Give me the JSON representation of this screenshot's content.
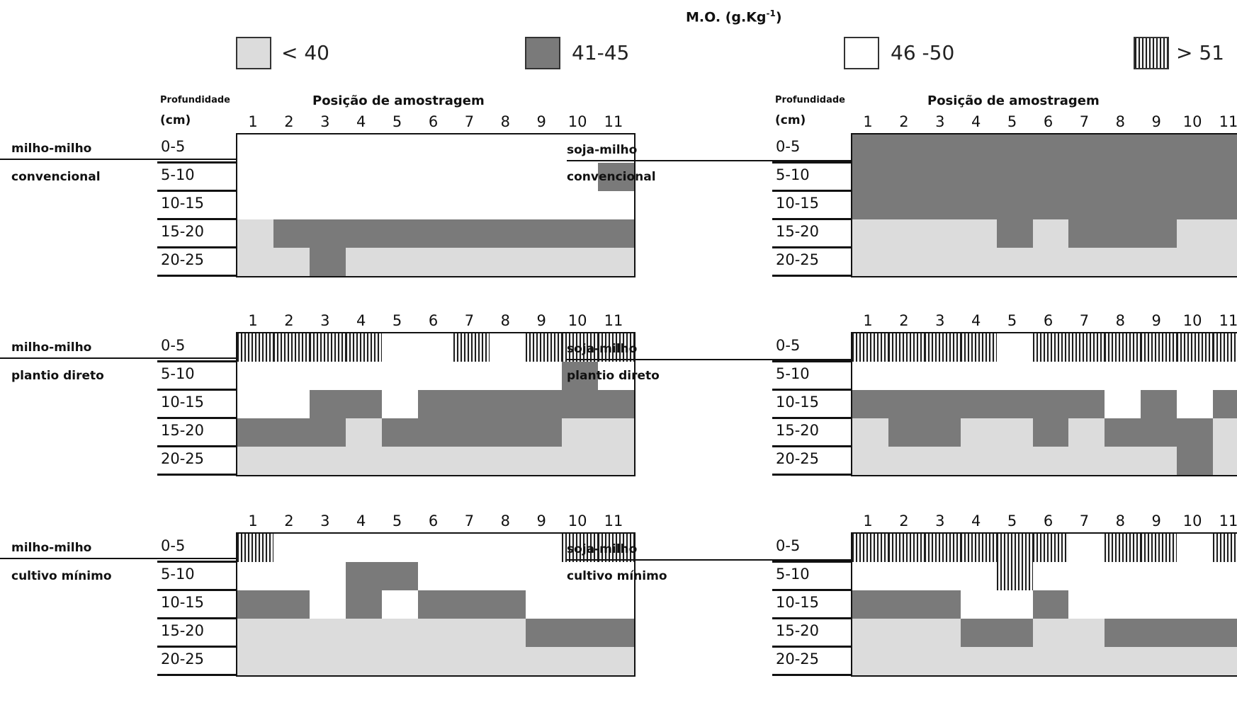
{
  "legend": {
    "unit_main": "M.O. (g.Kg",
    "unit_sup": "-1",
    "unit_close": ")",
    "classes": [
      {
        "label": "< 40",
        "color": "#dcdcdc"
      },
      {
        "label": "41-45",
        "color": "#7a7a7a"
      },
      {
        "label": "46 -50",
        "color": "#ffffff"
      },
      {
        "label": "> 51",
        "color": "hatched"
      }
    ]
  },
  "axis": {
    "depth_header_1": "Profundidade",
    "depth_header_2": "(cm)",
    "position_title": "Posição de amostragem"
  },
  "chart_data": {
    "type": "heatmap",
    "x_categories": [
      "1",
      "2",
      "3",
      "4",
      "5",
      "6",
      "7",
      "8",
      "9",
      "10",
      "11"
    ],
    "y_categories": [
      "0-5",
      "5-10",
      "10-15",
      "15-20",
      "20-25"
    ],
    "class_codes": {
      "0": "< 40",
      "1": "41-45",
      "2": "46 -50",
      "3": "> 51"
    },
    "panels": [
      {
        "rotation": "milho-milho",
        "system": "convencional",
        "grid": [
          [
            2,
            2,
            2,
            2,
            2,
            2,
            2,
            2,
            2,
            2,
            2
          ],
          [
            2,
            2,
            2,
            2,
            2,
            2,
            2,
            2,
            2,
            2,
            1
          ],
          [
            2,
            2,
            2,
            2,
            2,
            2,
            2,
            2,
            2,
            2,
            2
          ],
          [
            0,
            1,
            1,
            1,
            1,
            1,
            1,
            1,
            1,
            1,
            1
          ],
          [
            0,
            0,
            1,
            0,
            0,
            0,
            0,
            0,
            0,
            0,
            0
          ]
        ]
      },
      {
        "rotation": "soja-milho",
        "system": "convencional",
        "grid": [
          [
            1,
            1,
            1,
            1,
            1,
            1,
            1,
            1,
            1,
            1,
            1
          ],
          [
            1,
            1,
            1,
            1,
            1,
            1,
            1,
            1,
            1,
            1,
            1
          ],
          [
            1,
            1,
            1,
            1,
            1,
            1,
            1,
            1,
            1,
            1,
            1
          ],
          [
            0,
            0,
            0,
            0,
            1,
            0,
            1,
            1,
            1,
            0,
            0
          ],
          [
            0,
            0,
            0,
            0,
            0,
            0,
            0,
            0,
            0,
            0,
            0
          ]
        ]
      },
      {
        "rotation": "milho-milho",
        "system": "plantio direto",
        "grid": [
          [
            3,
            3,
            3,
            3,
            2,
            2,
            3,
            2,
            3,
            3,
            3
          ],
          [
            2,
            2,
            2,
            2,
            2,
            2,
            2,
            2,
            2,
            1,
            2
          ],
          [
            2,
            2,
            1,
            1,
            2,
            1,
            1,
            1,
            1,
            1,
            1
          ],
          [
            1,
            1,
            1,
            0,
            1,
            1,
            1,
            1,
            1,
            0,
            0
          ],
          [
            0,
            0,
            0,
            0,
            0,
            0,
            0,
            0,
            0,
            0,
            0
          ]
        ]
      },
      {
        "rotation": "soja-milho",
        "system": "plantio direto",
        "grid": [
          [
            3,
            3,
            3,
            3,
            2,
            3,
            3,
            3,
            3,
            3,
            3
          ],
          [
            2,
            2,
            2,
            2,
            2,
            2,
            2,
            2,
            2,
            2,
            2
          ],
          [
            1,
            1,
            1,
            1,
            1,
            1,
            1,
            2,
            1,
            2,
            1
          ],
          [
            0,
            1,
            1,
            0,
            0,
            1,
            0,
            1,
            1,
            1,
            0
          ],
          [
            0,
            0,
            0,
            0,
            0,
            0,
            0,
            0,
            0,
            1,
            0
          ]
        ]
      },
      {
        "rotation": "milho-milho",
        "system": "cultivo mínimo",
        "grid": [
          [
            3,
            2,
            2,
            2,
            2,
            2,
            2,
            2,
            2,
            3,
            3
          ],
          [
            2,
            2,
            2,
            1,
            1,
            2,
            2,
            2,
            2,
            2,
            2
          ],
          [
            1,
            1,
            2,
            1,
            2,
            1,
            1,
            1,
            2,
            2,
            2
          ],
          [
            0,
            0,
            0,
            0,
            0,
            0,
            0,
            0,
            1,
            1,
            1
          ],
          [
            0,
            0,
            0,
            0,
            0,
            0,
            0,
            0,
            0,
            0,
            0
          ]
        ]
      },
      {
        "rotation": "soja-milho",
        "system": "cultivo mínimo",
        "grid": [
          [
            3,
            3,
            3,
            3,
            3,
            3,
            2,
            3,
            3,
            2,
            3
          ],
          [
            2,
            2,
            2,
            2,
            3,
            2,
            2,
            2,
            2,
            2,
            2
          ],
          [
            1,
            1,
            1,
            2,
            2,
            1,
            2,
            2,
            2,
            2,
            2
          ],
          [
            0,
            0,
            0,
            1,
            1,
            0,
            0,
            1,
            1,
            1,
            1
          ],
          [
            0,
            0,
            0,
            0,
            0,
            0,
            0,
            0,
            0,
            0,
            0
          ]
        ]
      }
    ]
  }
}
